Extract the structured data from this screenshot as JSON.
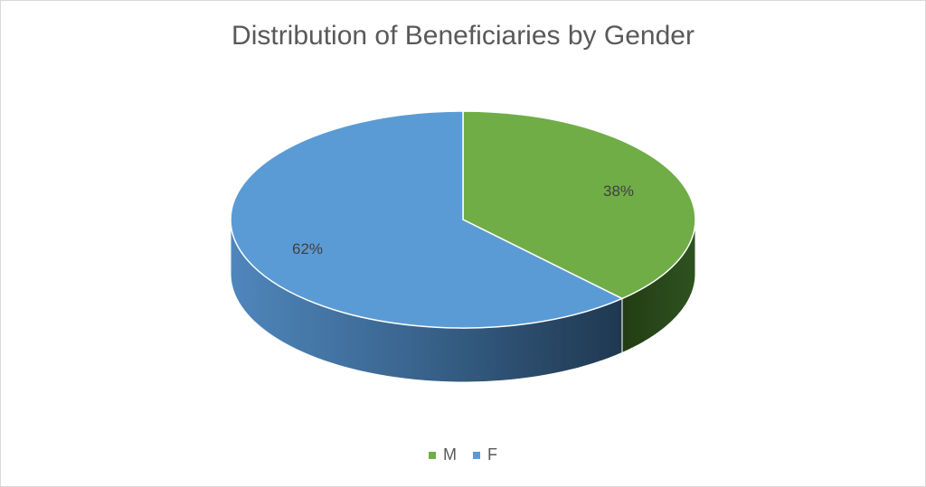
{
  "chart_data": {
    "type": "pie",
    "title": "Distribution of Beneficiaries by Gender",
    "categories": [
      "M",
      "F"
    ],
    "values": [
      38,
      62
    ],
    "data_labels": [
      "38%",
      "62%"
    ],
    "colors": [
      "#70ad47",
      "#5b9bd5"
    ],
    "legend_position": "bottom",
    "three_d": true
  }
}
